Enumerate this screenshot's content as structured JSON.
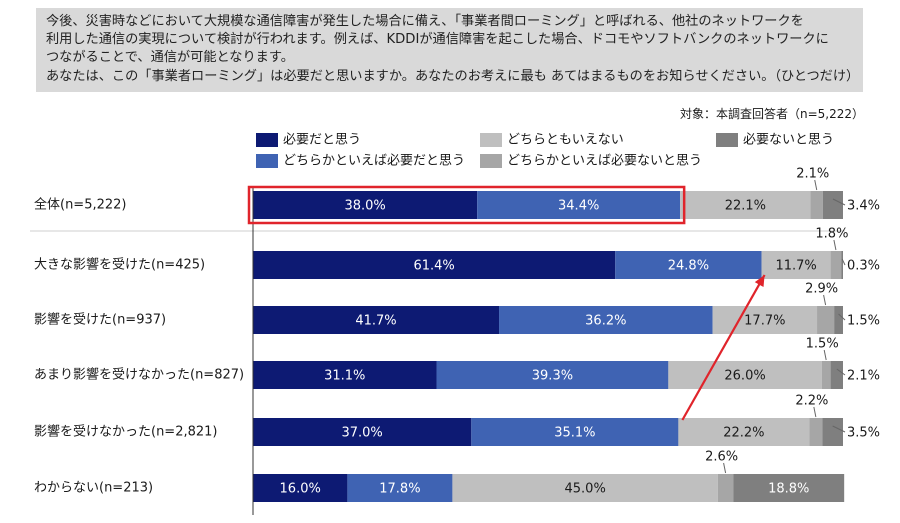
{
  "question": {
    "lines": [
      "今後、災害時などにおいて大規模な通信障害が発生した場合に備え、「事業者間ローミング」と呼ばれる、他社のネットワークを",
      "利用した通信の実現について検討が行われます。例えば、KDDIが通信障害を起こした場合、ドコモやソフトバンクのネットワークに",
      "つながることで、通信が可能となります。",
      "あなたは、この「事業者ローミング」は必要だと思いますか。あなたのお考えに最も あてはまるものをお知らせください。（ひとつだけ）"
    ]
  },
  "target_note": "対象：本調査回答者（n=5,222）",
  "colors": {
    "necessary": "#0d1a73",
    "somewhat_necessary": "#3f63b3",
    "neither": "#bfbfbf",
    "somewhat_unnecessary": "#a6a6a6",
    "unnecessary": "#7f7f7f",
    "highlight": "#e0242b",
    "arrow": "#e0242b"
  },
  "chart_data": {
    "type": "bar",
    "orientation": "horizontal",
    "stacked": true,
    "xlim": [
      0,
      100
    ],
    "unit": "%",
    "categories": [
      "全体(n=5,222)",
      "大きな影響を受けた(n=425)",
      "影響を受けた(n=937)",
      "あまり影響を受けなかった(n=827)",
      "影響を受けなかった(n=2,821)",
      "わからない(n=213)"
    ],
    "series": [
      {
        "name": "必要だと思う",
        "values": [
          38.0,
          61.4,
          41.7,
          31.1,
          37.0,
          16.0
        ]
      },
      {
        "name": "どちらかといえば必要だと思う",
        "values": [
          34.4,
          24.8,
          36.2,
          39.3,
          35.1,
          17.8
        ]
      },
      {
        "name": "どちらともいえない",
        "values": [
          22.1,
          11.7,
          17.7,
          26.0,
          22.2,
          45.0
        ]
      },
      {
        "name": "どちらかといえば必要ないと思う",
        "values": [
          2.1,
          1.8,
          2.9,
          1.5,
          2.2,
          2.6
        ]
      },
      {
        "name": "必要ないと思う",
        "values": [
          3.4,
          0.3,
          1.5,
          2.1,
          3.5,
          18.8
        ]
      }
    ],
    "legend": {
      "placement": "top",
      "order": [
        "必要だと思う",
        "どちらともいえない",
        "必要ないと思う",
        "どちらかといえば必要だと思う",
        "どちらかといえば必要ないと思う"
      ]
    },
    "annotations": {
      "highlight_row": "全体(n=5,222)",
      "highlight_series": [
        "必要だと思う",
        "どちらかといえば必要だと思う"
      ],
      "arrow": {
        "from": "影響を受けなかった(n=2,821)",
        "to": "大きな影響を受けた(n=425)"
      }
    }
  }
}
